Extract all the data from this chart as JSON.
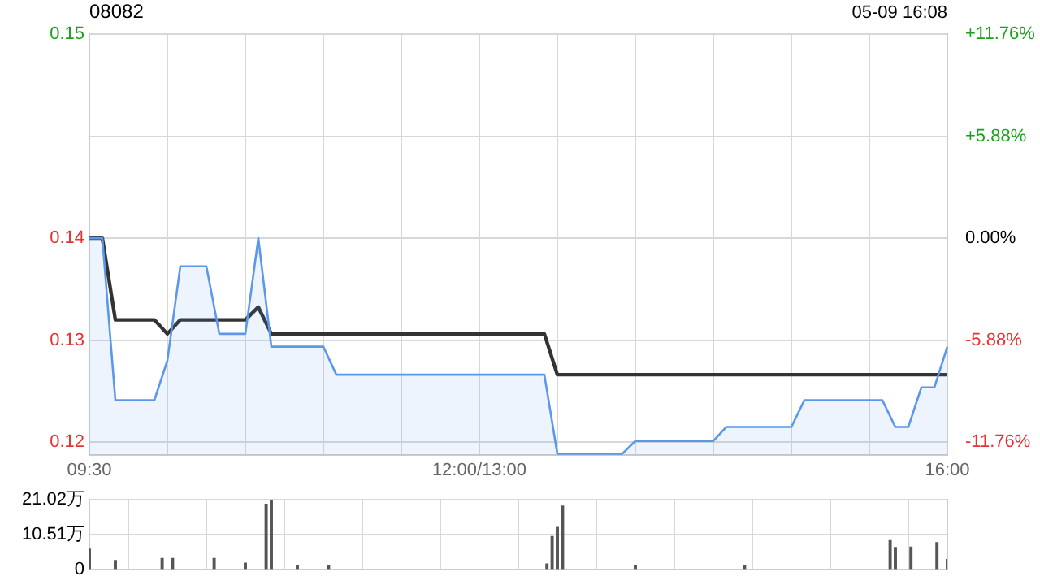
{
  "chart_data": [
    {
      "type": "line",
      "title": "08082",
      "subtitle": "05-09 16:08",
      "categories": [
        "09:30",
        null,
        null,
        null,
        null,
        null,
        null,
        null,
        null,
        null,
        null,
        null,
        null,
        null,
        null,
        null,
        null,
        null,
        null,
        null,
        null,
        null,
        null,
        null,
        null,
        null,
        null,
        null,
        null,
        null,
        "12:00/13:00",
        null,
        null,
        null,
        null,
        null,
        null,
        null,
        null,
        null,
        null,
        null,
        null,
        null,
        null,
        null,
        null,
        null,
        null,
        null,
        null,
        null,
        null,
        null,
        null,
        null,
        null,
        null,
        null,
        null,
        null,
        null,
        null,
        null,
        null,
        null,
        "16:00"
      ],
      "ylim": [
        0.119,
        0.152
      ],
      "yticks": [
        {
          "value": 0.12,
          "label": "0.12"
        },
        {
          "value": 0.128,
          "label": "0.13"
        },
        {
          "value": 0.136,
          "label": "0.14"
        },
        {
          "value": 0.144,
          "label": null
        },
        {
          "value": 0.152,
          "label": "0.15"
        }
      ],
      "y2lim": [
        -12.5,
        11.76
      ],
      "y2ticks": [
        {
          "value": -11.76,
          "label": "-11.76%"
        },
        {
          "value": -5.88,
          "label": "-5.88%"
        },
        {
          "value": 0,
          "label": "0.00%"
        },
        {
          "value": 5.88,
          "label": "+5.88%"
        },
        {
          "value": 11.76,
          "label": "+11.76%"
        }
      ],
      "grid": true,
      "marker": "none",
      "series": [
        {
          "type": "area",
          "color": "#5b97ea",
          "values": [
            0.136,
            0.136,
            0.1233,
            0.1233,
            0.1233,
            0.1233,
            0.1264,
            0.1338,
            0.1338,
            0.1338,
            0.1285,
            0.1285,
            0.1285,
            0.136,
            0.1275,
            0.1275,
            0.1275,
            0.1275,
            0.1275,
            0.1253,
            0.1253,
            0.1253,
            0.1253,
            0.1253,
            0.1253,
            0.1253,
            0.1253,
            0.1253,
            0.1253,
            0.1253,
            0.1253,
            0.1253,
            0.1253,
            0.1253,
            0.1253,
            0.1253,
            0.1191,
            0.1191,
            0.1191,
            0.1191,
            0.1191,
            0.1191,
            0.1201,
            0.1201,
            0.1201,
            0.1201,
            0.1201,
            0.1201,
            0.1201,
            0.1212,
            0.1212,
            0.1212,
            0.1212,
            0.1212,
            0.1212,
            0.1233,
            0.1233,
            0.1233,
            0.1233,
            0.1233,
            0.1233,
            0.1233,
            0.1212,
            0.1212,
            0.1243,
            0.1243,
            0.1275
          ]
        },
        {
          "color": "#333333",
          "values": [
            0.136,
            0.136,
            0.1296,
            0.1296,
            0.1296,
            0.1296,
            0.1285,
            0.1296,
            0.1296,
            0.1296,
            0.1296,
            0.1296,
            0.1296,
            0.1306,
            0.1285,
            0.1285,
            0.1285,
            0.1285,
            0.1285,
            0.1285,
            0.1285,
            0.1285,
            0.1285,
            0.1285,
            0.1285,
            0.1285,
            0.1285,
            0.1285,
            0.1285,
            0.1285,
            0.1285,
            0.1285,
            0.1285,
            0.1285,
            0.1285,
            0.1285,
            0.1253,
            0.1253,
            0.1253,
            0.1253,
            0.1253,
            0.1253,
            0.1253,
            0.1253,
            0.1253,
            0.1253,
            0.1253,
            0.1253,
            0.1253,
            0.1253,
            0.1253,
            0.1253,
            0.1253,
            0.1253,
            0.1253,
            0.1253,
            0.1253,
            0.1253,
            0.1253,
            0.1253,
            0.1253,
            0.1253,
            0.1253,
            0.1253,
            0.1253,
            0.1253,
            0.1253
          ]
        }
      ]
    },
    {
      "type": "bar",
      "color": "#555555",
      "categories": [
        null,
        null,
        null,
        null,
        null,
        null,
        null,
        null,
        null,
        null,
        null,
        null,
        null,
        null,
        null,
        null,
        null,
        null,
        null,
        null,
        null,
        null,
        null,
        null,
        null,
        null,
        null,
        null,
        null,
        null,
        null,
        null,
        null,
        null,
        null,
        null,
        null,
        null,
        null,
        null,
        null,
        null,
        null,
        null,
        null,
        null,
        null,
        null,
        null,
        null,
        null,
        null,
        null,
        null,
        null,
        null,
        null,
        null,
        null,
        null,
        null,
        null,
        null,
        null,
        null,
        null,
        null,
        null,
        null,
        null,
        null,
        null,
        null,
        null,
        null,
        null,
        null,
        null,
        null,
        null,
        null,
        null,
        null,
        null,
        null,
        null,
        null,
        null,
        null,
        null,
        null,
        null,
        null,
        null,
        null,
        null,
        null,
        null,
        null,
        null,
        null,
        null,
        null,
        null,
        null,
        null,
        null,
        null,
        null,
        null,
        null,
        null,
        null,
        null,
        null,
        null,
        null,
        null,
        null,
        null,
        null,
        null,
        null,
        null,
        null,
        null,
        null,
        null,
        null,
        null,
        null,
        null,
        null,
        null,
        null,
        null,
        null,
        null,
        null,
        null,
        null,
        null,
        null,
        null,
        null,
        null,
        null,
        null,
        null,
        null,
        null,
        null,
        null,
        null,
        null,
        null,
        null,
        null,
        null,
        null,
        null,
        null,
        null,
        null,
        null,
        null
      ],
      "ylim": [
        0,
        21.02
      ],
      "yticks": [
        {
          "value": 0,
          "label": "0"
        },
        {
          "value": 10.51,
          "label": "10.51万"
        },
        {
          "value": 21.02,
          "label": "21.02万"
        }
      ],
      "grid": true,
      "tick_labels": "y",
      "values": [
        6.1,
        null,
        null,
        null,
        null,
        2.7,
        null,
        null,
        null,
        null,
        null,
        null,
        null,
        null,
        3.3,
        null,
        3.3,
        null,
        null,
        null,
        null,
        null,
        null,
        null,
        3.3,
        null,
        null,
        null,
        null,
        null,
        1.9,
        null,
        null,
        null,
        19.7,
        21,
        null,
        null,
        null,
        null,
        1.2,
        null,
        null,
        null,
        null,
        null,
        1.2,
        null,
        null,
        null,
        null,
        null,
        null,
        null,
        null,
        null,
        null,
        null,
        null,
        null,
        null,
        null,
        null,
        null,
        null,
        null,
        null,
        null,
        null,
        null,
        null,
        null,
        null,
        null,
        null,
        null,
        null,
        null,
        null,
        null,
        null,
        null,
        null,
        null,
        null,
        null,
        null,
        null,
        1.6,
        9.9,
        12.7,
        19.1,
        null,
        null,
        null,
        null,
        null,
        null,
        null,
        null,
        null,
        null,
        null,
        null,
        null,
        1.2,
        null,
        null,
        null,
        null,
        null,
        null,
        null,
        null,
        null,
        null,
        null,
        null,
        null,
        null,
        null,
        null,
        null,
        null,
        null,
        null,
        1.2,
        null,
        null,
        null,
        null,
        null,
        null,
        null,
        null,
        null,
        null,
        null,
        null,
        null,
        null,
        null,
        null,
        null,
        null,
        null,
        null,
        null,
        null,
        null,
        null,
        null,
        null,
        null,
        8.7,
        6.6,
        null,
        null,
        6.7,
        null,
        null,
        null,
        null,
        8.1,
        null,
        3
      ]
    }
  ]
}
